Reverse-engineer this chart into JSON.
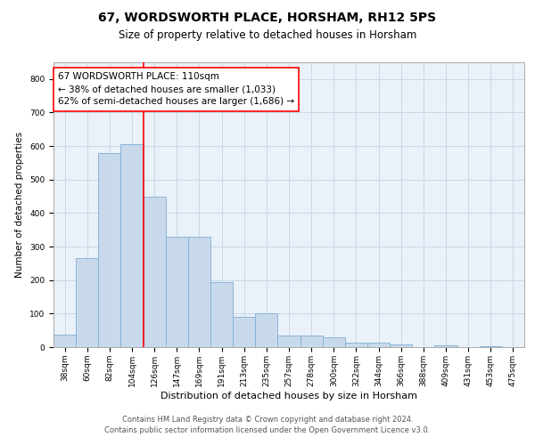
{
  "title1": "67, WORDSWORTH PLACE, HORSHAM, RH12 5PS",
  "title2": "Size of property relative to detached houses in Horsham",
  "xlabel": "Distribution of detached houses by size in Horsham",
  "ylabel": "Number of detached properties",
  "categories": [
    "38sqm",
    "60sqm",
    "82sqm",
    "104sqm",
    "126sqm",
    "147sqm",
    "169sqm",
    "191sqm",
    "213sqm",
    "235sqm",
    "257sqm",
    "278sqm",
    "300sqm",
    "322sqm",
    "344sqm",
    "366sqm",
    "388sqm",
    "409sqm",
    "431sqm",
    "453sqm",
    "475sqm"
  ],
  "values": [
    38,
    265,
    580,
    605,
    450,
    330,
    330,
    195,
    90,
    102,
    35,
    35,
    30,
    12,
    12,
    8,
    0,
    5,
    0,
    3,
    0
  ],
  "bar_color": "#c9d9ec",
  "bar_edge_color": "#7bafd4",
  "ylim": [
    0,
    850
  ],
  "yticks": [
    0,
    100,
    200,
    300,
    400,
    500,
    600,
    700,
    800
  ],
  "grid_color": "#c8d8e8",
  "bg_color": "#eaf1f8",
  "red_line_x": 3.5,
  "annotation_line1": "67 WORDSWORTH PLACE: 110sqm",
  "annotation_line2": "← 38% of detached houses are smaller (1,033)",
  "annotation_line3": "62% of semi-detached houses are larger (1,686) →",
  "footer1": "Contains HM Land Registry data © Crown copyright and database right 2024.",
  "footer2": "Contains public sector information licensed under the Open Government Licence v3.0.",
  "title1_fontsize": 10,
  "title2_fontsize": 8.5,
  "xlabel_fontsize": 8,
  "ylabel_fontsize": 7.5,
  "tick_fontsize": 6.5,
  "annotation_fontsize": 7.5,
  "footer_fontsize": 6.0
}
